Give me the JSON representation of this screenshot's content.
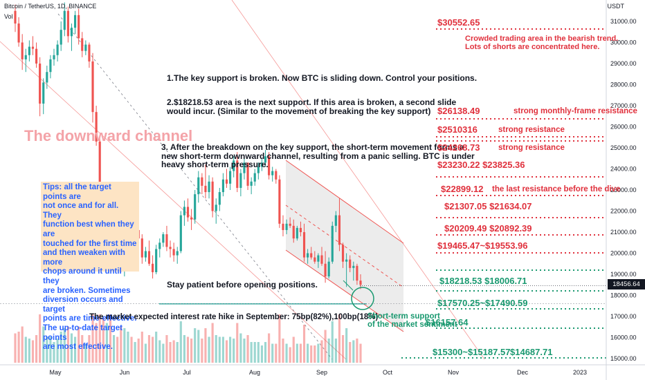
{
  "header": {
    "symbol_line": "Bitcoin / TetherUS, 1D, BINANCE",
    "indicator": "Vol",
    "currency": "USDT"
  },
  "colors": {
    "up": "#26a69a",
    "down": "#ef5350",
    "annotation_red": "#e0303c",
    "annotation_green": "#1a9970",
    "tip_bg": "#fde4c4",
    "tip_text": "#2962ff",
    "channel_fill": "#e6e6e6",
    "title_pink": "#f4a3a8"
  },
  "chart_data": {
    "type": "candlestick",
    "y_unit": "USDT",
    "ylim": [
      14800,
      32300
    ],
    "y_ticks": [
      15000,
      16000,
      17000,
      18000,
      19000,
      20000,
      21000,
      22000,
      23000,
      24000,
      25000,
      26000,
      27000,
      28000,
      29000,
      30000,
      31000
    ],
    "y_tick_labels": [
      "15000.00",
      "16000.00",
      "17000.00",
      "18000.00",
      "19000.00",
      "20000.00",
      "21000.00",
      "22000.00",
      "23000.00",
      "24000.00",
      "25000.00",
      "26000.00",
      "27000.00",
      "28000.00",
      "29000.00",
      "30000.00",
      "31000.00"
    ],
    "x_labels": [
      "May",
      "Jun",
      "Jul",
      "Aug",
      "Sep",
      "Oct",
      "Nov",
      "Dec",
      "2023"
    ],
    "current_price": "18456.64",
    "candles": [
      [
        31500,
        31800,
        30500,
        30900
      ],
      [
        30900,
        31200,
        29800,
        30000
      ],
      [
        30000,
        30400,
        28700,
        29200
      ],
      [
        29200,
        29700,
        28600,
        29400
      ],
      [
        29400,
        30100,
        29100,
        29800
      ],
      [
        29800,
        30300,
        29400,
        29700
      ],
      [
        29700,
        30000,
        28800,
        29000
      ],
      [
        29000,
        29300,
        26500,
        27100
      ],
      [
        27100,
        28300,
        26600,
        28100
      ],
      [
        28100,
        28900,
        27800,
        28600
      ],
      [
        28600,
        29400,
        28300,
        29200
      ],
      [
        29200,
        29700,
        28900,
        29400
      ],
      [
        29400,
        30100,
        29100,
        29900
      ],
      [
        29900,
        31000,
        29600,
        30600
      ],
      [
        30600,
        31900,
        30300,
        31500
      ],
      [
        31500,
        31700,
        30000,
        30300
      ],
      [
        30300,
        30900,
        29600,
        30700
      ],
      [
        30700,
        31500,
        30400,
        31300
      ],
      [
        31300,
        31600,
        29900,
        30200
      ],
      [
        30200,
        30500,
        29300,
        29600
      ],
      [
        29600,
        30100,
        29400,
        29900
      ],
      [
        29900,
        30000,
        28800,
        29100
      ],
      [
        29100,
        29500,
        26200,
        26700
      ],
      [
        26700,
        27000,
        25100,
        25300
      ],
      [
        25300,
        25600,
        22500,
        22700
      ],
      [
        22700,
        23100,
        20900,
        21300
      ],
      [
        21300,
        22500,
        20600,
        22200
      ],
      [
        22200,
        22900,
        20100,
        20400
      ],
      [
        20400,
        21000,
        19800,
        20600
      ],
      [
        20600,
        21300,
        20200,
        20500
      ],
      [
        20500,
        20800,
        19100,
        19300
      ],
      [
        19300,
        20500,
        18900,
        20300
      ],
      [
        20300,
        21500,
        20100,
        21300
      ],
      [
        21300,
        21700,
        20600,
        20900
      ],
      [
        20900,
        21200,
        20400,
        21100
      ],
      [
        21100,
        21800,
        20800,
        20700
      ],
      [
        20700,
        20900,
        19500,
        19800
      ],
      [
        19800,
        20300,
        19600,
        20100
      ],
      [
        20100,
        20600,
        19400,
        19500
      ],
      [
        19500,
        19900,
        18800,
        19100
      ],
      [
        19100,
        20400,
        19000,
        20200
      ],
      [
        20200,
        20700,
        19800,
        20500
      ],
      [
        20500,
        21000,
        20300,
        20900
      ],
      [
        20900,
        21300,
        20100,
        20300
      ],
      [
        20300,
        20600,
        19800,
        20200
      ],
      [
        20200,
        20500,
        19600,
        19900
      ],
      [
        19900,
        20300,
        19500,
        20100
      ],
      [
        20100,
        22000,
        20000,
        21800
      ],
      [
        21800,
        22500,
        21300,
        22200
      ],
      [
        22200,
        22600,
        21500,
        21700
      ],
      [
        21700,
        22100,
        21100,
        21600
      ],
      [
        21600,
        23000,
        21400,
        22800
      ],
      [
        22800,
        23900,
        22400,
        23600
      ],
      [
        23600,
        23800,
        22800,
        23200
      ],
      [
        23200,
        24200,
        22600,
        22900
      ],
      [
        22900,
        23700,
        22600,
        23400
      ],
      [
        23400,
        23600,
        21700,
        22000
      ],
      [
        22000,
        22600,
        21400,
        22300
      ],
      [
        22300,
        23100,
        22000,
        22900
      ],
      [
        22900,
        23800,
        22700,
        23500
      ],
      [
        23500,
        24000,
        23100,
        23300
      ],
      [
        23300,
        24100,
        23000,
        23900
      ],
      [
        23900,
        24600,
        23600,
        24400
      ],
      [
        24400,
        24800,
        22900,
        23100
      ],
      [
        23100,
        24000,
        22700,
        23800
      ],
      [
        23800,
        24500,
        23500,
        24300
      ],
      [
        24300,
        24200,
        23000,
        23200
      ],
      [
        23200,
        23600,
        22800,
        23400
      ],
      [
        23400,
        24000,
        23200,
        23800
      ],
      [
        23800,
        24300,
        23500,
        24100
      ],
      [
        24100,
        24500,
        23900,
        24300
      ],
      [
        24300,
        24900,
        24100,
        24600
      ],
      [
        24600,
        24800,
        23500,
        23700
      ],
      [
        23700,
        24100,
        23400,
        23900
      ],
      [
        23900,
        24000,
        23300,
        23500
      ],
      [
        23500,
        23700,
        21200,
        21400
      ],
      [
        21400,
        21800,
        20800,
        21100
      ],
      [
        21100,
        21600,
        20900,
        21400
      ],
      [
        21400,
        21700,
        21200,
        21300
      ],
      [
        21300,
        21600,
        20500,
        20700
      ],
      [
        20700,
        21300,
        20600,
        21200
      ],
      [
        21200,
        21500,
        20800,
        21000
      ],
      [
        21000,
        21400,
        19600,
        19800
      ],
      [
        19800,
        20200,
        19500,
        20000
      ],
      [
        20000,
        20300,
        19700,
        19800
      ],
      [
        19800,
        20100,
        19500,
        19600
      ],
      [
        19600,
        20000,
        19300,
        19900
      ],
      [
        19900,
        20300,
        19400,
        19500
      ],
      [
        19500,
        20100,
        18600,
        18900
      ],
      [
        18900,
        19800,
        18800,
        19600
      ],
      [
        19600,
        21500,
        19500,
        21300
      ],
      [
        21300,
        22000,
        21000,
        21800
      ],
      [
        21800,
        22600,
        20100,
        20400
      ],
      [
        20400,
        20500,
        19300,
        19600
      ],
      [
        19600,
        20000,
        18400,
        19700
      ],
      [
        19700,
        19900,
        19100,
        19300
      ],
      [
        19300,
        19600,
        18700,
        19400
      ],
      [
        19400,
        19500,
        18500,
        18700
      ],
      [
        18700,
        19000,
        18300,
        18500
      ]
    ]
  },
  "annotations": {
    "channel_title": "The downward channel",
    "note1": "1.The key support is broken. Now BTC is sliding down. Control your positions.",
    "note2_line1": "2.$18218.53 area is the next support. If this area is broken, a second slide",
    "note2_line2": "would incur. (Similar to the movement of breaking the key support)",
    "note3_line1": "3. After the breakdown on the key support, the short-term movement forms a",
    "note3_line2": "new short-term downward channel, resulting from a panic selling. BTC is under",
    "note3_line3": "heavy short-term pressure.",
    "tips": [
      "Tips: all the target points are",
      "not once and for all. They",
      "function best when they are",
      "touched for the first time",
      "and then weaken with more",
      "chops around it until they",
      "are broken. Sometimes",
      "diversion occurs and target",
      "points are time-effective.",
      "The up-to-date target points",
      "are most effective."
    ],
    "patience": "Stay patient before opening positions.",
    "rate_hike": "The market expected interest rate hike in September: 75bp(82%),100bp(18%)",
    "short_term_support_line1": "Short-term support",
    "short_term_support_line2": "of the market sentiment",
    "crowded_line1": "Crowded trading area in the bearish trend.",
    "crowded_line2": "Lots of shorts are concentrated here."
  },
  "levels": {
    "r1": "$30552.65",
    "r2": "$26138.49",
    "r2_desc": "strong monthly-frame resistance",
    "r3": "$2510316",
    "r3_desc": "strong resistance",
    "r4": "$24268.73",
    "r4_desc": "strong resistance",
    "r5": "$23230.22  $23825.36",
    "r6": "$22899.12",
    "r6_desc": "the last resistance before the dive",
    "r7": "$21307.05   $21634.07",
    "r8": "$20209.49   $20892.39",
    "r9": "$19465.47~$19553.96",
    "s1": "$18218.53  $18006.71",
    "s2": "$17570.25~$17490.59",
    "s3": "$16157.64",
    "s4": "$15300~$15187.57",
    "s4b": "$14687.71"
  }
}
